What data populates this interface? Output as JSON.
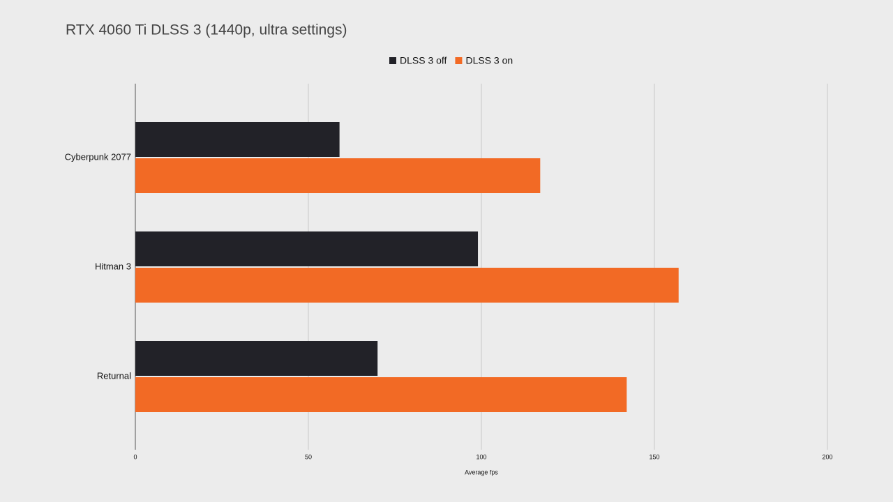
{
  "chart_data": {
    "type": "hbar",
    "title": "RTX 4060 Ti DLSS 3 (1440p, ultra settings)",
    "x_label": "Average fps",
    "categories": [
      "Cyberpunk 2077",
      "Hitman 3",
      "Returnal"
    ],
    "series": [
      {
        "name": "DLSS 3 off",
        "color": "#222228",
        "values": [
          59,
          99,
          70
        ]
      },
      {
        "name": "DLSS 3 on",
        "color": "#f26a25",
        "values": [
          117,
          157,
          142
        ]
      }
    ],
    "xlim": [
      0,
      200
    ],
    "xticks": [
      0,
      50,
      100,
      150,
      200
    ],
    "grid": true,
    "legend": "top"
  }
}
